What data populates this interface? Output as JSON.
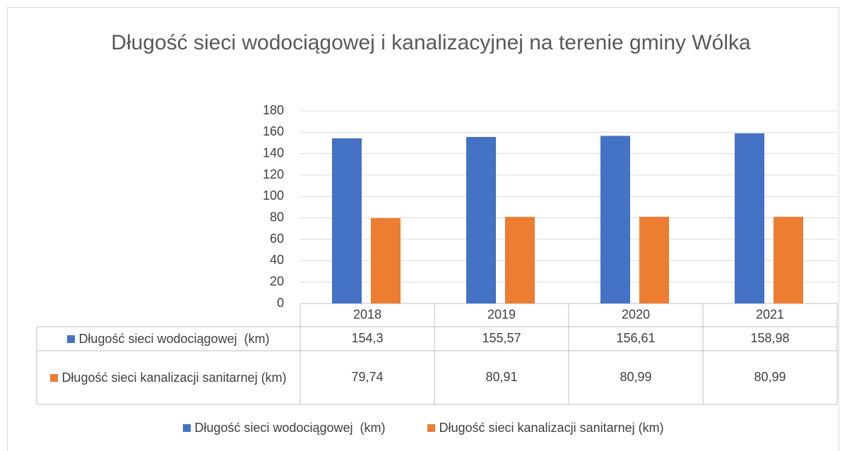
{
  "chart_data": {
    "type": "bar",
    "title": "Długość sieci wodociągowej i kanalizacyjnej na terenie gminy Wólka",
    "categories": [
      "2018",
      "2019",
      "2020",
      "2021"
    ],
    "series": [
      {
        "name": "Długość sieci wodociągowej  (km)",
        "color": "#4472c4",
        "values": [
          154.3,
          155.57,
          156.61,
          158.98
        ],
        "value_labels": [
          "154,3",
          "155,57",
          "156,61",
          "158,98"
        ]
      },
      {
        "name": "Długość sieci kanalizacji sanitarnej (km)",
        "color": "#ed7d31",
        "values": [
          79.74,
          80.91,
          80.99,
          80.99
        ],
        "value_labels": [
          "79,74",
          "80,91",
          "80,99",
          "80,99"
        ]
      }
    ],
    "ylim": [
      0,
      180
    ],
    "yticks": [
      0,
      20,
      40,
      60,
      80,
      100,
      120,
      140,
      160,
      180
    ],
    "grid": true,
    "legend": "bottom"
  }
}
